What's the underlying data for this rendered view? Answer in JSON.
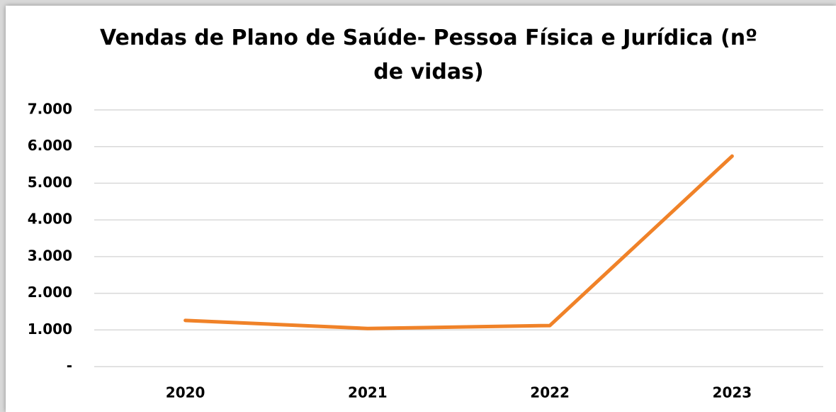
{
  "chart_data": {
    "type": "line",
    "title": "Vendas de Plano de Saúde- Pessoa Física e Jurídica (nº de vidas)",
    "categories": [
      "2020",
      "2021",
      "2022",
      "2023"
    ],
    "series": [
      {
        "name": "Vendas",
        "color": "#f08228",
        "values": [
          1260,
          1040,
          1120,
          5740
        ]
      }
    ],
    "ylim": [
      0,
      7000
    ],
    "yticks": [
      {
        "value": 0,
        "label": "-"
      },
      {
        "value": 1000,
        "label": "1.000"
      },
      {
        "value": 2000,
        "label": "2.000"
      },
      {
        "value": 3000,
        "label": "3.000"
      },
      {
        "value": 4000,
        "label": "4.000"
      },
      {
        "value": 5000,
        "label": "5.000"
      },
      {
        "value": 6000,
        "label": "6.000"
      },
      {
        "value": 7000,
        "label": "7.000"
      }
    ],
    "grid": true
  }
}
